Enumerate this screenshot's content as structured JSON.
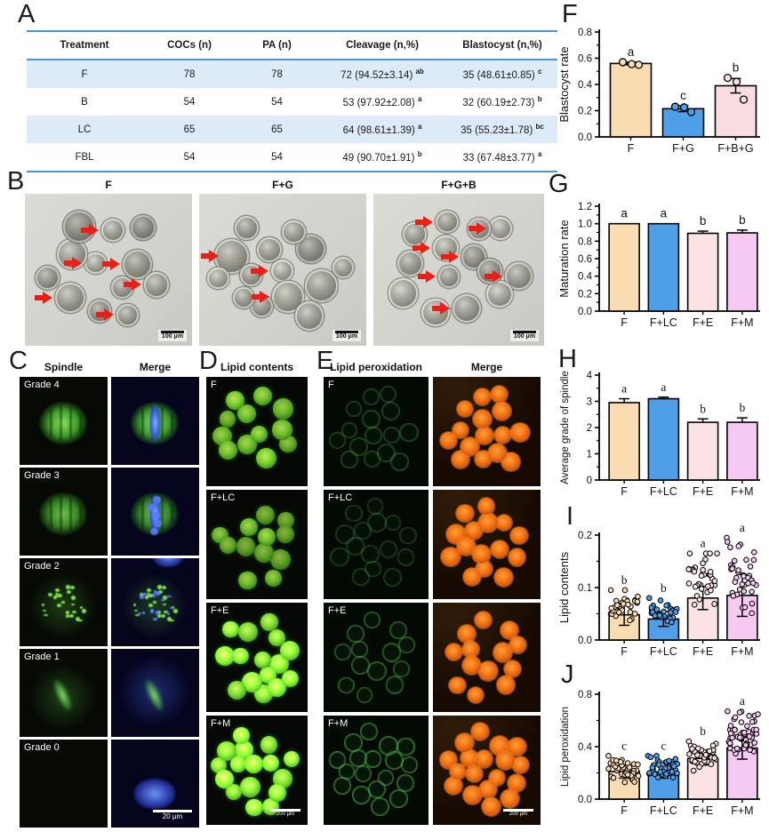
{
  "panels": {
    "A": {
      "label": "A",
      "table": {
        "headers": [
          "Treatment",
          "COCs (n)",
          "PA (n)",
          "Cleavage (n,%)",
          "Blastocyst (n,%)"
        ],
        "rows": [
          {
            "cells": [
              "F",
              "78",
              "78"
            ],
            "cleavage": {
              "t": "72 (94.52±3.14)",
              "s": "ab"
            },
            "blastocyst": {
              "t": "35 (48.61±0.85)",
              "s": "c"
            },
            "shaded": true
          },
          {
            "cells": [
              "B",
              "54",
              "54"
            ],
            "cleavage": {
              "t": "53 (97.92±2.08)",
              "s": "a"
            },
            "blastocyst": {
              "t": "32 (60.19±2.73)",
              "s": "b"
            },
            "shaded": false
          },
          {
            "cells": [
              "LC",
              "65",
              "65"
            ],
            "cleavage": {
              "t": "64 (98.61±1.39)",
              "s": "a"
            },
            "blastocyst": {
              "t": "35 (55.23±1.78)",
              "s": "bc"
            },
            "shaded": true
          },
          {
            "cells": [
              "FBL",
              "54",
              "54"
            ],
            "cleavage": {
              "t": "49 (90.70±1.91)",
              "s": "b"
            },
            "blastocyst": {
              "t": "33 (67.48±3.77)",
              "s": "a"
            },
            "shaded": false
          }
        ]
      }
    },
    "B": {
      "label": "B",
      "scale_bar": "100 μm",
      "images": [
        {
          "title": "F",
          "embryo_count": 12,
          "arrow_count": 6
        },
        {
          "title": "F+G",
          "embryo_count": 14,
          "arrow_count": 3
        },
        {
          "title": "F+G+B",
          "embryo_count": 14,
          "arrow_count": 7
        }
      ]
    },
    "C": {
      "label": "C",
      "col_headers": [
        "Spindle",
        "Merge"
      ],
      "row_labels": [
        "Grade 4",
        "Grade 3",
        "Grade 2",
        "Grade 1",
        "Grade 0"
      ],
      "scale_bar": "20 μm"
    },
    "D": {
      "label": "D",
      "header": "Lipid contents",
      "row_labels": [
        "F",
        "F+LC",
        "F+E",
        "F+M"
      ],
      "oocyte_counts": [
        12,
        12,
        15,
        16
      ],
      "scale_bar": "200 μm"
    },
    "E": {
      "label": "E",
      "col_headers": [
        "Lipid peroxidation",
        "Merge"
      ],
      "row_labels": [
        "F",
        "F+LC",
        "F+E",
        "F+M"
      ],
      "oocyte_counts": [
        15,
        15,
        13,
        18
      ],
      "scale_bar": "200 μm"
    },
    "F": {
      "label": "F"
    },
    "G": {
      "label": "G"
    },
    "H": {
      "label": "H"
    },
    "I": {
      "label": "I"
    },
    "J": {
      "label": "J"
    }
  },
  "colors": {
    "table_line": "#4f93d2",
    "table_row_shade": "#dcebf7",
    "bar_peach": "#fadcb2",
    "bar_blue": "#4f9fe8",
    "bar_pink": "#fadde2",
    "bar_lightpink": "#fbe3e3",
    "bar_violet": "#f5c9f1",
    "arrow_red": "#e82018"
  },
  "chart_data": [
    {
      "id": "F",
      "type": "bar",
      "ylabel": "Blastocyst rate",
      "categories": [
        "F",
        "F+G",
        "F+B+G"
      ],
      "values": [
        0.56,
        0.215,
        0.39
      ],
      "errors": [
        0.01,
        0.022,
        0.055
      ],
      "error_style": "both",
      "sig_letters": [
        "a",
        "c",
        "b"
      ],
      "sig_font": "sans",
      "bar_colors": [
        "#fadcb2",
        "#4f9fe8",
        "#fadde2"
      ],
      "ylim": [
        0,
        0.8
      ],
      "yticks": [
        "0.0",
        "0.2",
        "0.4",
        "0.6",
        "0.8"
      ],
      "minor_step": 0.1,
      "points": [
        [
          0.57,
          0.555,
          0.55
        ],
        [
          0.23,
          0.225,
          0.19
        ],
        [
          0.45,
          0.42,
          0.285
        ]
      ]
    },
    {
      "id": "G",
      "type": "bar",
      "ylabel": "Maturation rate",
      "categories": [
        "F",
        "F+LC",
        "F+E",
        "F+M"
      ],
      "values": [
        1.0,
        1.0,
        0.89,
        0.895
      ],
      "errors": [
        0,
        0,
        0.025,
        0.032
      ],
      "error_style": "up",
      "sig_letters": [
        "a",
        "a",
        "b",
        "b"
      ],
      "sig_font": "sans",
      "bar_colors": [
        "#fadcb2",
        "#4f9fe8",
        "#fbe3e3",
        "#f5c9f1"
      ],
      "ylim": [
        0,
        1.2
      ],
      "yticks": [
        "0.0",
        "0.2",
        "0.4",
        "0.6",
        "0.8",
        "1.0",
        "1.2"
      ],
      "minor_step": 0.1
    },
    {
      "id": "H",
      "type": "bar",
      "ylabel": "Average grade of spindle",
      "categories": [
        "F",
        "F+LC",
        "F+E",
        "F+M"
      ],
      "values": [
        2.95,
        3.1,
        2.2,
        2.2
      ],
      "errors": [
        0.15,
        0.06,
        0.13,
        0.17
      ],
      "error_style": "up",
      "sig_letters": [
        "a",
        "a",
        "b",
        "b"
      ],
      "sig_font": "serif",
      "bar_colors": [
        "#fadcb2",
        "#4f9fe8",
        "#fbe3e3",
        "#f5c9f1"
      ],
      "ylim": [
        0,
        4
      ],
      "yticks": [
        "0",
        "1",
        "2",
        "3",
        "4"
      ],
      "minor_step": 0.5
    },
    {
      "id": "I",
      "type": "bar",
      "ylabel": "Lipid contents",
      "categories": [
        "F",
        "F+LC",
        "F+E",
        "F+M"
      ],
      "values": [
        0.048,
        0.04,
        0.08,
        0.085
      ],
      "errors": [
        0.02,
        0.014,
        0.022,
        0.04
      ],
      "error_style": "both",
      "sig_letters": [
        "b",
        "b",
        "a",
        "a"
      ],
      "sig_font": "serif",
      "bar_colors": [
        "#fadcb2",
        "#4f9fe8",
        "#fbe3e3",
        "#f5c9f1"
      ],
      "ylim": [
        0,
        0.2
      ],
      "yticks": [
        "0.0",
        "0.1",
        "0.2"
      ],
      "minor_step": 0.05,
      "scatter": [
        {
          "n": 30,
          "min": 0.02,
          "max": 0.095
        },
        {
          "n": 34,
          "min": 0.015,
          "max": 0.08
        },
        {
          "n": 36,
          "min": 0.045,
          "max": 0.165
        },
        {
          "n": 38,
          "min": 0.035,
          "max": 0.195
        }
      ]
    },
    {
      "id": "J",
      "type": "bar",
      "ylabel": "Lipid peroxidation",
      "categories": [
        "F",
        "F+LC",
        "F+E",
        "F+M"
      ],
      "values": [
        0.21,
        0.2,
        0.31,
        0.39
      ],
      "errors": [
        0.05,
        0.04,
        0.05,
        0.085
      ],
      "error_style": "both",
      "sig_letters": [
        "c",
        "c",
        "b",
        "a"
      ],
      "sig_font": "serif",
      "bar_colors": [
        "#fadcb2",
        "#4f9fe8",
        "#fbe3e3",
        "#f5c9f1"
      ],
      "ylim": [
        0,
        0.8
      ],
      "yticks": [
        "0.0",
        "0.4",
        "0.8"
      ],
      "minor_step": 0.2,
      "scatter": [
        {
          "n": 38,
          "min": 0.1,
          "max": 0.33
        },
        {
          "n": 44,
          "min": 0.1,
          "max": 0.33
        },
        {
          "n": 38,
          "min": 0.2,
          "max": 0.44
        },
        {
          "n": 56,
          "min": 0.24,
          "max": 0.67
        }
      ]
    }
  ]
}
